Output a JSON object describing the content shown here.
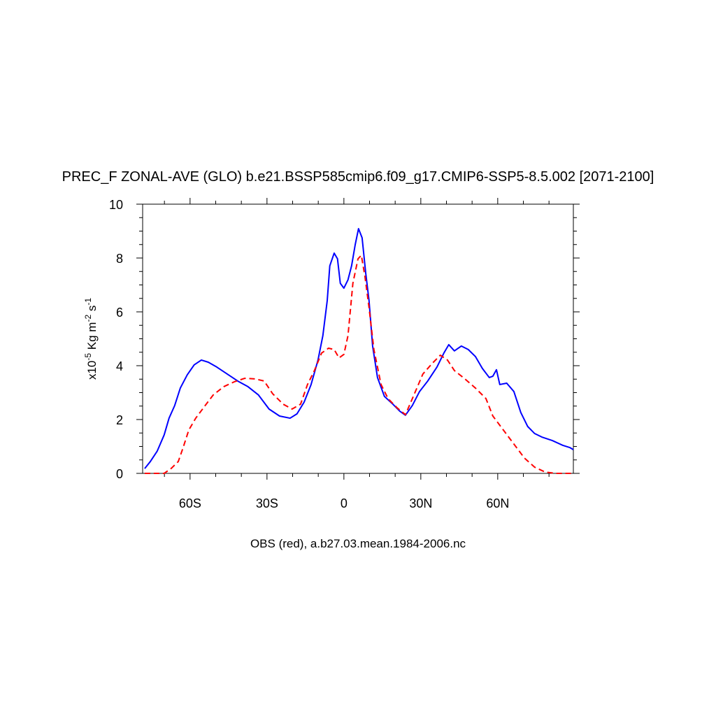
{
  "chart_data": {
    "type": "line",
    "title": "PREC_F ZONAL-AVE (GLO) b.e21.BSSP585cmip6.f09_g17.CMIP6-SSP5-8.5.002 [2071-2100]",
    "xlabel": "OBS (red), a.b27.03.mean.1984-2006.nc",
    "ylabel_parts": [
      "x10",
      "-5",
      " Kg m",
      "-2",
      " s",
      "-1"
    ],
    "xlim": [
      -78.5,
      89.5
    ],
    "ylim": [
      0,
      10
    ],
    "xticks": [
      {
        "value": -60,
        "label": "60S"
      },
      {
        "value": -30,
        "label": "30S"
      },
      0,
      {
        "value": 30,
        "label": "30N"
      },
      {
        "value": 60,
        "label": "60N"
      }
    ],
    "xminorticks": [
      -70,
      -50,
      -40,
      -20,
      -10,
      10,
      20,
      40,
      50,
      70,
      80
    ],
    "yticks": [
      0,
      2,
      4,
      6,
      8,
      10
    ],
    "yminorticks": [
      0.5,
      1,
      1.5,
      2.5,
      3,
      3.5,
      4.5,
      5,
      5.5,
      6.5,
      7,
      7.5,
      8.5,
      9,
      9.5
    ],
    "series": [
      {
        "color": "#0000ff",
        "dash": false,
        "x": [
          -77.7,
          -75.5,
          -72.8,
          -70.1,
          -68.2,
          -66,
          -63.8,
          -61.1,
          -58.4,
          -55.6,
          -52.9,
          -49.6,
          -45.5,
          -41.4,
          -37.4,
          -33.3,
          -29.2,
          -25.1,
          -21,
          -18.3,
          -15.5,
          -12.8,
          -10.1,
          -8.2,
          -6.5,
          -5.5,
          -3.8,
          -2.5,
          -1.4,
          0,
          1.6,
          3,
          4.4,
          5.7,
          7.1,
          8.5,
          9.8,
          11.2,
          13.1,
          15.8,
          19.1,
          21.8,
          24,
          26.7,
          29.5,
          32.7,
          36.3,
          39,
          40.9,
          43.1,
          45.8,
          48.5,
          51.3,
          54,
          56.7,
          58.1,
          59.5,
          60.8,
          63.5,
          66.3,
          69,
          71.7,
          74.4,
          77.2,
          81.3,
          85.4,
          88.1,
          89.5
        ],
        "values": [
          0.18,
          0.44,
          0.83,
          1.43,
          2.05,
          2.52,
          3.17,
          3.66,
          4.03,
          4.21,
          4.13,
          3.95,
          3.69,
          3.43,
          3.22,
          2.91,
          2.39,
          2.13,
          2.05,
          2.21,
          2.65,
          3.3,
          4.21,
          5.12,
          6.42,
          7.71,
          8.18,
          7.97,
          7.06,
          6.88,
          7.19,
          7.71,
          8.49,
          9.09,
          8.75,
          7.45,
          6.42,
          4.73,
          3.56,
          2.86,
          2.57,
          2.31,
          2.16,
          2.52,
          3.04,
          3.43,
          3.95,
          4.47,
          4.78,
          4.55,
          4.73,
          4.6,
          4.34,
          3.9,
          3.56,
          3.61,
          3.85,
          3.3,
          3.35,
          3.04,
          2.26,
          1.74,
          1.48,
          1.35,
          1.22,
          1.04,
          0.96,
          0.88
        ]
      },
      {
        "color": "#ff0000",
        "dash": true,
        "x": [
          -77.7,
          -70.1,
          -67.4,
          -64.6,
          -62.7,
          -60.5,
          -57.8,
          -54.5,
          -51,
          -46.9,
          -42.8,
          -38.7,
          -34.6,
          -31.1,
          -27.8,
          -23.7,
          -20.2,
          -16.9,
          -14.2,
          -11.5,
          -8.7,
          -6,
          -3.8,
          -1.9,
          0,
          1.6,
          3.5,
          5.5,
          6.8,
          8.2,
          9.8,
          11.7,
          14.5,
          17.2,
          20.7,
          24,
          27.3,
          30.8,
          34.4,
          37.6,
          40.4,
          43.1,
          47.2,
          51.3,
          55.4,
          58.1,
          62.2,
          66.3,
          70.4,
          74.4,
          78.5,
          82.6,
          89.5
        ],
        "values": [
          0,
          0,
          0.18,
          0.44,
          0.96,
          1.61,
          2.05,
          2.47,
          2.91,
          3.22,
          3.4,
          3.53,
          3.51,
          3.43,
          2.96,
          2.57,
          2.39,
          2.57,
          3.3,
          3.82,
          4.47,
          4.65,
          4.6,
          4.29,
          4.42,
          5.12,
          7.06,
          7.97,
          8.1,
          7.32,
          6.16,
          4.6,
          3.3,
          2.78,
          2.44,
          2.18,
          2.91,
          3.69,
          4.08,
          4.39,
          4.21,
          3.82,
          3.51,
          3.17,
          2.78,
          2.13,
          1.61,
          1.09,
          0.57,
          0.23,
          0.05,
          0,
          0
        ]
      }
    ]
  }
}
